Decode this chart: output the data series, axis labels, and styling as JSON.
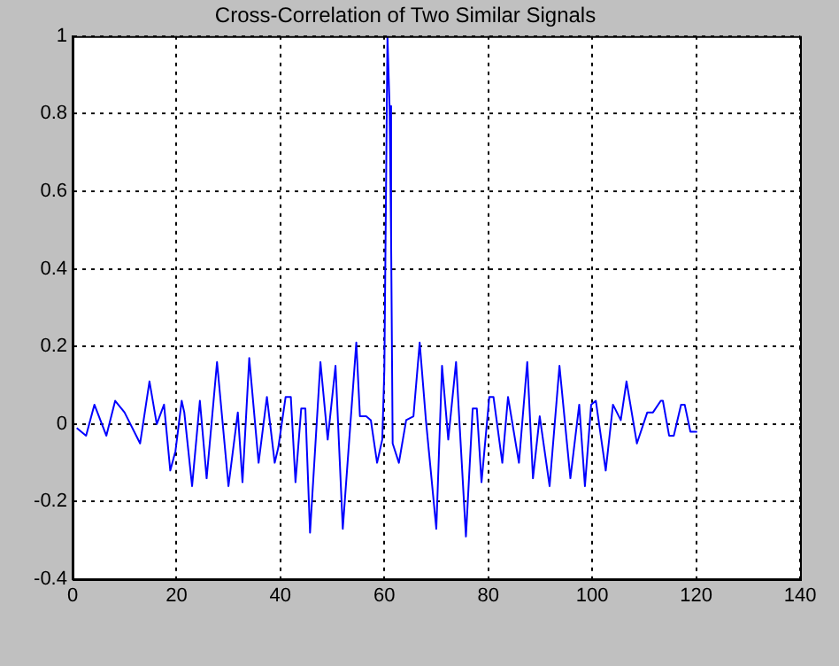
{
  "chart_data": {
    "type": "line",
    "title": "Cross-Correlation of Two Similar Signals",
    "x": [
      0.8,
      2.6,
      4.2,
      6.5,
      8.2,
      10,
      13,
      14.8,
      16.2,
      17.6,
      18.8,
      19.8,
      21,
      21.5,
      23,
      24.5,
      25.8,
      27.8,
      30,
      31.8,
      32.7,
      34,
      35.8,
      37.4,
      38.9,
      39.6,
      41,
      42,
      42.9,
      44,
      44.8,
      45.7,
      47.7,
      49.1,
      50.6,
      52,
      54.6,
      55.3,
      56.5,
      57.4,
      58.6,
      59.6,
      60,
      60.6,
      61,
      61.3,
      61.6,
      62.8,
      64.2,
      65.6,
      66.8,
      68,
      70,
      71.1,
      72.3,
      73.8,
      75.7,
      77,
      77.8,
      78.7,
      80.2,
      81,
      82.7,
      83.8,
      85.9,
      87.5,
      88.6,
      89.9,
      91.8,
      93.7,
      95.8,
      97.5,
      98.6,
      99.8,
      100.7,
      102.6,
      104,
      105.5,
      106.6,
      108.6,
      110.6,
      111.7,
      113.2,
      113.6,
      114.8,
      115.7,
      117.1,
      117.8,
      118.9,
      120.2
    ],
    "series": [
      {
        "color": "#0000ff",
        "values": [
          -0.01,
          -0.03,
          0.05,
          -0.03,
          0.06,
          0.03,
          -0.05,
          0.11,
          0,
          0.05,
          -0.12,
          -0.07,
          0.06,
          0.03,
          -0.16,
          0.06,
          -0.14,
          0.16,
          -0.16,
          0.03,
          -0.15,
          0.17,
          -0.1,
          0.07,
          -0.1,
          -0.06,
          0.07,
          0.07,
          -0.15,
          0.04,
          0.04,
          -0.28,
          0.16,
          -0.04,
          0.15,
          -0.27,
          0.21,
          0.02,
          0.02,
          0.01,
          -0.1,
          -0.04,
          0.14,
          1,
          0.82,
          0.48,
          -0.05,
          -0.1,
          0.01,
          0.02,
          0.21,
          0.01,
          -0.27,
          0.15,
          -0.04,
          0.16,
          -0.29,
          0.04,
          0.04,
          -0.15,
          0.07,
          0.07,
          -0.1,
          0.07,
          -0.1,
          0.16,
          -0.14,
          0.02,
          -0.16,
          0.15,
          -0.14,
          0.05,
          -0.16,
          0.05,
          0.06,
          -0.12,
          0.05,
          0.01,
          0.11,
          -0.05,
          0.03,
          0.03,
          0.06,
          0.06,
          -0.03,
          -0.03,
          0.05,
          0.05,
          -0.02,
          -0.02
        ]
      }
    ],
    "xlim": [
      0,
      140
    ],
    "xticks": [
      0,
      20,
      40,
      60,
      80,
      100,
      120,
      140
    ],
    "ylim": [
      -0.4,
      1
    ],
    "yticks": [
      -0.4,
      -0.2,
      0,
      0.2,
      0.4,
      0.6,
      0.8,
      1
    ],
    "grid": true,
    "line_style": "solid"
  }
}
